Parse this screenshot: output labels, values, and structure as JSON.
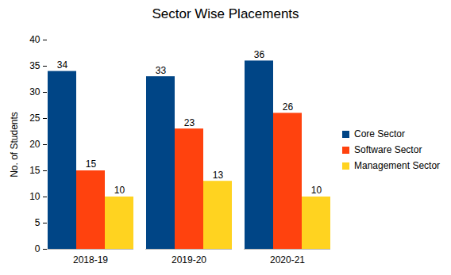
{
  "chart_data": {
    "type": "bar",
    "title": "Sector Wise Placements",
    "y_label": "No. of Students",
    "categories": [
      "2018-19",
      "2019-20",
      "2020-21"
    ],
    "series": [
      {
        "name": "Core Sector",
        "color": "#004586",
        "values": [
          34,
          33,
          36
        ]
      },
      {
        "name": "Software Sector",
        "color": "#ff420e",
        "values": [
          15,
          23,
          26
        ]
      },
      {
        "name": "Management Sector",
        "color": "#ffd320",
        "values": [
          10,
          13,
          10
        ]
      }
    ],
    "ylim": [
      0,
      40
    ],
    "yticks": [
      0,
      5,
      10,
      15,
      20,
      25,
      30,
      35,
      40
    ],
    "grid": false,
    "legend": "right",
    "data_labels": true
  }
}
